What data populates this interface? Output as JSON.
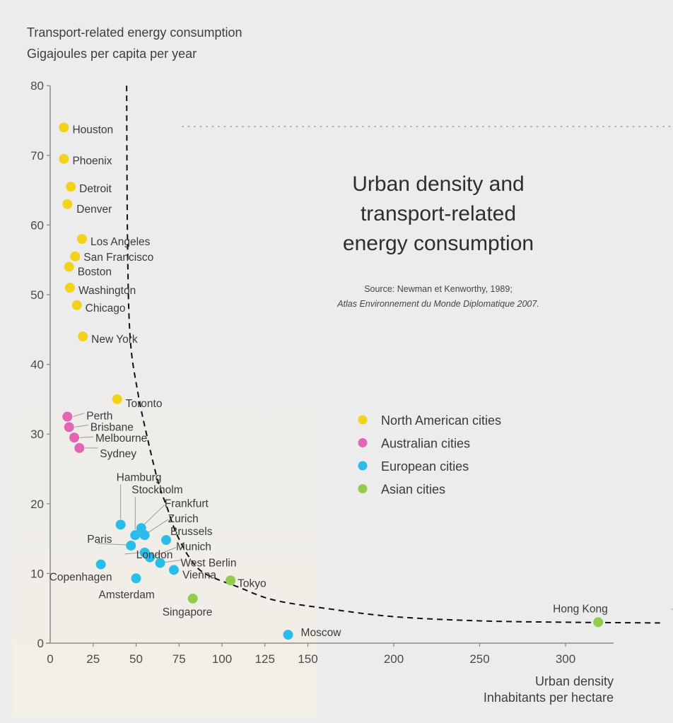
{
  "chart_data": {
    "type": "scatter",
    "title": [
      "Urban density and",
      "transport-related",
      "energy consumption"
    ],
    "source": [
      "Source: Newman et Kenworthy, 1989;",
      "Atlas Environnement du Monde Diplomatique 2007."
    ],
    "ylabel": [
      "Transport-related energy consumption",
      "Gigajoules per capita per year"
    ],
    "xlabel": [
      "Urban density",
      "Inhabitants per hectare"
    ],
    "xlim": [
      0,
      330
    ],
    "ylim": [
      0,
      80
    ],
    "xticks": [
      0,
      25,
      50,
      75,
      100,
      125,
      150,
      200,
      250,
      300
    ],
    "yticks": [
      0,
      10,
      20,
      30,
      40,
      50,
      60,
      70,
      80
    ],
    "grid": false,
    "legend_position": "center-right",
    "legend": [
      {
        "key": "north_america",
        "label": "North American cities",
        "color": "#f2d21b"
      },
      {
        "key": "australia",
        "label": "Australian cities",
        "color": "#e464b4"
      },
      {
        "key": "europe",
        "label": "European cities",
        "color": "#2bbde9"
      },
      {
        "key": "asia",
        "label": "Asian cities",
        "color": "#93cc4a"
      }
    ],
    "series": [
      {
        "name": "North American cities",
        "key": "north_america",
        "points": [
          {
            "city": "Houston",
            "x": 8,
            "y": 74
          },
          {
            "city": "Phoenix",
            "x": 8,
            "y": 69.5
          },
          {
            "city": "Detroit",
            "x": 12,
            "y": 65.5
          },
          {
            "city": "Denver",
            "x": 10,
            "y": 63
          },
          {
            "city": "Los Angeles",
            "x": 18.5,
            "y": 58
          },
          {
            "city": "San Francisco",
            "x": 14.5,
            "y": 55.5
          },
          {
            "city": "Boston",
            "x": 11,
            "y": 54
          },
          {
            "city": "Washington",
            "x": 11.5,
            "y": 51
          },
          {
            "city": "Chicago",
            "x": 15.5,
            "y": 48.5
          },
          {
            "city": "New York",
            "x": 19,
            "y": 44
          },
          {
            "city": "Toronto",
            "x": 39,
            "y": 35
          }
        ]
      },
      {
        "name": "Australian cities",
        "key": "australia",
        "points": [
          {
            "city": "Perth",
            "x": 10,
            "y": 32.5
          },
          {
            "city": "Brisbane",
            "x": 11,
            "y": 31
          },
          {
            "city": "Melbourne",
            "x": 14,
            "y": 29.5
          },
          {
            "city": "Sydney",
            "x": 17,
            "y": 28
          }
        ]
      },
      {
        "name": "European cities",
        "key": "europe",
        "points": [
          {
            "city": "Hamburg",
            "x": 41,
            "y": 17
          },
          {
            "city": "Stockholm",
            "x": 49.5,
            "y": 15.5
          },
          {
            "city": "Frankfurt",
            "x": 53,
            "y": 16.5
          },
          {
            "city": "Zurich",
            "x": 55,
            "y": 15.5
          },
          {
            "city": "Paris",
            "x": 47,
            "y": 14
          },
          {
            "city": "Brussels",
            "x": 67.5,
            "y": 14.8
          },
          {
            "city": "London",
            "x": 55,
            "y": 13
          },
          {
            "city": "Munich",
            "x": 58,
            "y": 12.3
          },
          {
            "city": "West Berlin",
            "x": 64,
            "y": 11.5
          },
          {
            "city": "Vienna",
            "x": 72,
            "y": 10.5
          },
          {
            "city": "Copenhagen",
            "x": 29.5,
            "y": 11.3
          },
          {
            "city": "Amsterdam",
            "x": 50,
            "y": 9.3
          },
          {
            "city": "Moscow",
            "x": 138.5,
            "y": 1.2
          }
        ]
      },
      {
        "name": "Asian cities",
        "key": "asia",
        "points": [
          {
            "city": "Tokyo",
            "x": 105,
            "y": 9
          },
          {
            "city": "Singapore",
            "x": 83,
            "y": 6.4
          },
          {
            "city": "Hong Kong",
            "x": 319,
            "y": 3
          }
        ]
      }
    ],
    "trend_curve": {
      "style": "dashed",
      "points": [
        [
          44.5,
          80
        ],
        [
          45,
          58
        ],
        [
          46.5,
          44
        ],
        [
          51,
          36
        ],
        [
          57,
          29
        ],
        [
          63,
          23
        ],
        [
          68,
          19.5
        ],
        [
          73,
          16
        ],
        [
          81,
          12.3
        ],
        [
          90,
          10
        ],
        [
          110,
          8
        ],
        [
          130,
          6.2
        ],
        [
          160,
          5
        ],
        [
          200,
          3.8
        ],
        [
          250,
          3.2
        ],
        [
          300,
          3.0
        ],
        [
          355,
          2.9
        ]
      ]
    },
    "reference_lines": [
      {
        "style": "dotted",
        "y": 74,
        "x_from": 46,
        "x_to": 362,
        "color": "#8aab6c"
      },
      {
        "style": "dotted",
        "y": 5,
        "x_from": 331,
        "x_to": 362,
        "color": "#8aab6c"
      }
    ]
  }
}
